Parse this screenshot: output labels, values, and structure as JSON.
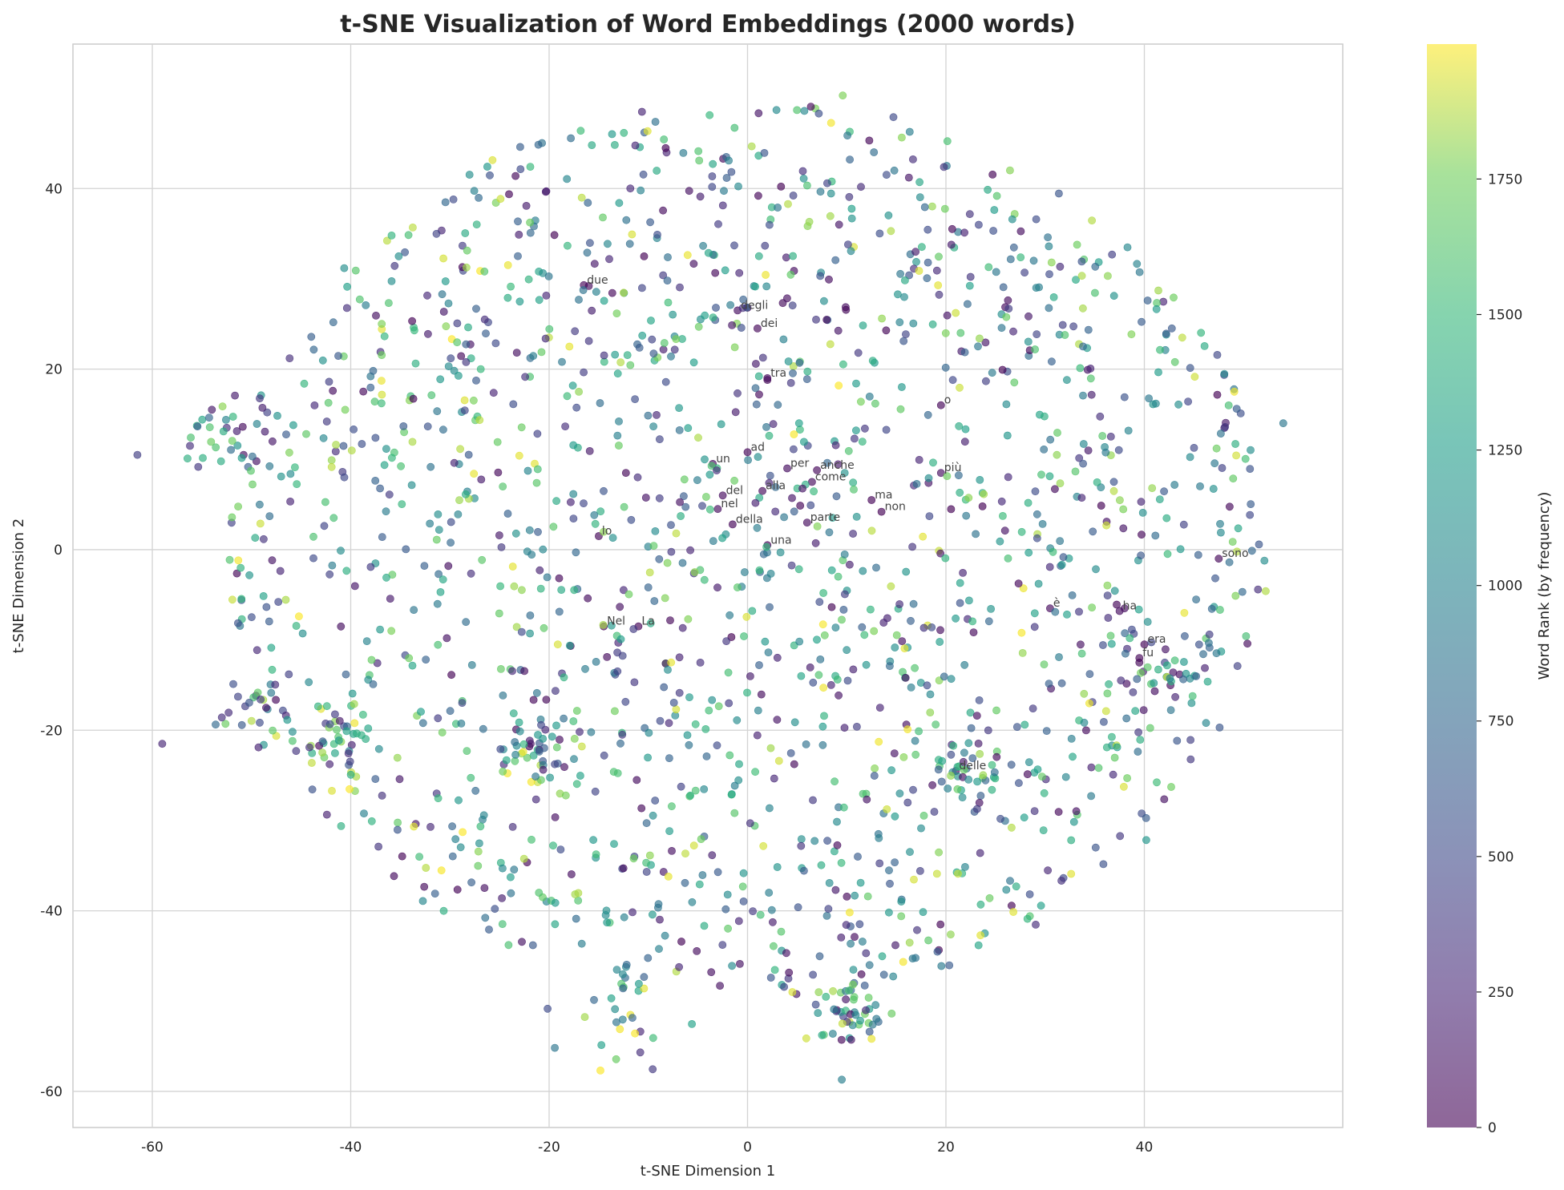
{
  "chart_data": {
    "type": "scatter",
    "title": "t-SNE Visualization of Word Embeddings (2000 words)",
    "xlabel": "t-SNE Dimension 1",
    "ylabel": "t-SNE Dimension 2",
    "xlim": [
      -68,
      60
    ],
    "ylim": [
      -64,
      56
    ],
    "xticks": [
      -60,
      -40,
      -20,
      0,
      20,
      40
    ],
    "yticks": [
      -60,
      -40,
      -20,
      0,
      20,
      40
    ],
    "grid": true,
    "colormap": "viridis",
    "colorbar": {
      "label": "Word Rank (by frequency)",
      "range": [
        0,
        1999
      ],
      "ticks": [
        0,
        250,
        500,
        750,
        1000,
        1250,
        1500,
        1750
      ]
    },
    "point_count": 2000,
    "sample_points": [
      {
        "x": -61.5,
        "y": 10.5,
        "rank": 420
      },
      {
        "x": -54.0,
        "y": 15.5,
        "rank": 150
      },
      {
        "x": -52.5,
        "y": 13.5,
        "rank": 300
      },
      {
        "x": -49.5,
        "y": 9.8,
        "rank": 120
      },
      {
        "x": -50.8,
        "y": 10.5,
        "rank": 90
      },
      {
        "x": -22.0,
        "y": -21.8,
        "rank": 40
      },
      {
        "x": -16.0,
        "y": 29.2,
        "rank": 60
      },
      {
        "x": 0.0,
        "y": 26.8,
        "rank": 80
      },
      {
        "x": 2.0,
        "y": 18.8,
        "rank": 30
      },
      {
        "x": 9.0,
        "y": -51.0,
        "rank": 60
      },
      {
        "x": 38.0,
        "y": -6.5,
        "rank": 70
      },
      {
        "x": 39.5,
        "y": -12.5,
        "rank": 30
      },
      {
        "x": 9.6,
        "y": 50.3,
        "rank": 1780
      },
      {
        "x": -59.0,
        "y": -21.5,
        "rank": 250
      },
      {
        "x": 54.0,
        "y": 14.0,
        "rank": 900
      },
      {
        "x": 9.5,
        "y": -58.7,
        "rank": 960
      }
    ],
    "annotations": [
      {
        "text": "due",
        "x": -16.5,
        "y": 29.3
      },
      {
        "text": "degli",
        "x": -1.0,
        "y": 26.5
      },
      {
        "text": "dei",
        "x": 1.0,
        "y": 24.5
      },
      {
        "text": "tra",
        "x": 2.0,
        "y": 19.0
      },
      {
        "text": "o",
        "x": 19.5,
        "y": 16.0
      },
      {
        "text": "ad",
        "x": 0.0,
        "y": 10.8
      },
      {
        "text": "un",
        "x": -3.5,
        "y": 9.5
      },
      {
        "text": "per",
        "x": 4.0,
        "y": 9.0
      },
      {
        "text": "anche",
        "x": 7.0,
        "y": 8.8
      },
      {
        "text": "più",
        "x": 19.5,
        "y": 8.5
      },
      {
        "text": "come",
        "x": 6.5,
        "y": 7.5
      },
      {
        "text": "del",
        "x": -2.5,
        "y": 6.0
      },
      {
        "text": "alla",
        "x": 1.5,
        "y": 6.5
      },
      {
        "text": "nel",
        "x": -3.0,
        "y": 4.5
      },
      {
        "text": "ma",
        "x": 12.5,
        "y": 5.5
      },
      {
        "text": "non",
        "x": 13.5,
        "y": 4.2
      },
      {
        "text": "parte",
        "x": 6.0,
        "y": 3.0
      },
      {
        "text": "della",
        "x": -1.5,
        "y": 2.8
      },
      {
        "text": "lo",
        "x": -15.0,
        "y": 1.5
      },
      {
        "text": "una",
        "x": 2.0,
        "y": 0.5
      },
      {
        "text": "sono",
        "x": 47.5,
        "y": -1.0
      },
      {
        "text": "è",
        "x": 30.5,
        "y": -6.5
      },
      {
        "text": "ha",
        "x": 37.5,
        "y": -6.8
      },
      {
        "text": "Nel",
        "x": -14.5,
        "y": -8.5
      },
      {
        "text": "La",
        "x": -11.0,
        "y": -8.5
      },
      {
        "text": "era",
        "x": 40.0,
        "y": -10.5
      },
      {
        "text": "fu",
        "x": 39.5,
        "y": -12.0
      },
      {
        "text": "delle",
        "x": 21.0,
        "y": -24.5
      }
    ]
  }
}
